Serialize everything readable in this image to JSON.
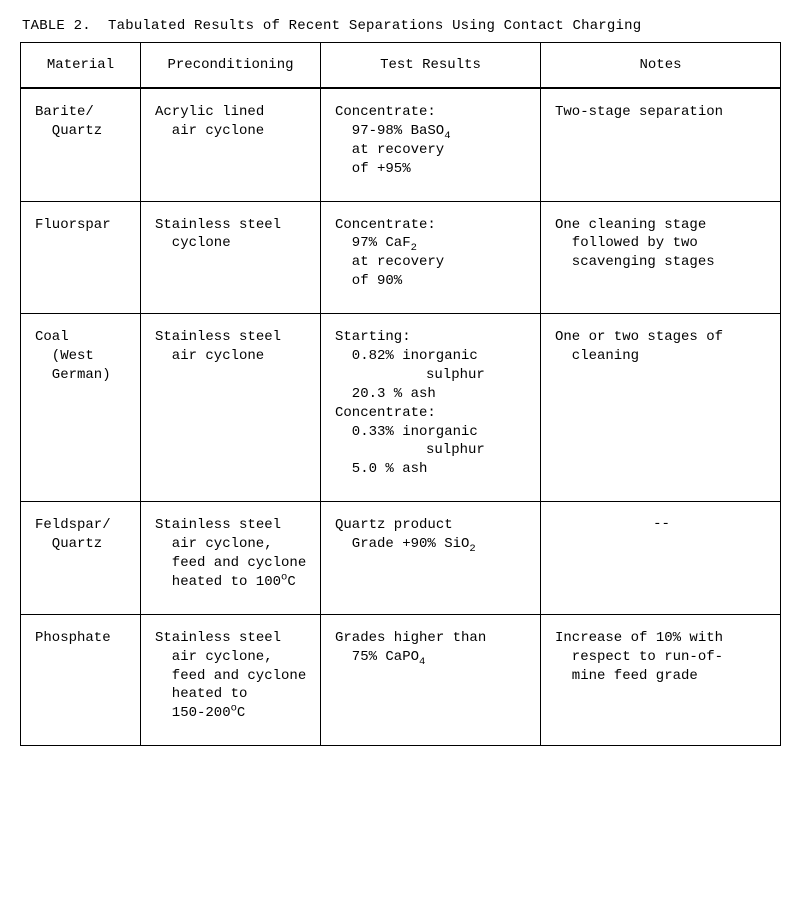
{
  "caption_prefix": "TABLE 2.",
  "caption_text": "Tabulated Results of Recent Separations Using Contact Charging",
  "columns": [
    "Material",
    "Preconditioning",
    "Test Results",
    "Notes"
  ],
  "rows": [
    {
      "material": [
        "Barite/",
        "Quartz"
      ],
      "precond": [
        "Acrylic lined",
        "air cyclone"
      ],
      "results": [
        "Concentrate:",
        "97-98% BaSO",
        "at recovery",
        "of +95%"
      ],
      "results_sub": "4",
      "notes": [
        "Two-stage separation"
      ]
    },
    {
      "material": [
        "Fluorspar"
      ],
      "precond": [
        "Stainless steel",
        "cyclone"
      ],
      "results": [
        "Concentrate:",
        "97% CaF",
        "at recovery",
        "of 90%"
      ],
      "results_sub": "2",
      "notes": [
        "One cleaning stage",
        "followed by two",
        "scavenging stages"
      ]
    },
    {
      "material": [
        "Coal",
        "(West",
        "German)"
      ],
      "precond": [
        "Stainless steel",
        "air cyclone"
      ],
      "results_coal": {
        "l1": "Starting:",
        "l2": "0.82% inorganic",
        "l3": "sulphur",
        "l4": "20.3 % ash",
        "l5": "Concentrate:",
        "l6": "0.33% inorganic",
        "l7": "sulphur",
        "l8": "5.0 % ash"
      },
      "notes": [
        "One or two stages of",
        "cleaning"
      ]
    },
    {
      "material": [
        "Feldspar/",
        "Quartz"
      ],
      "precond": [
        "Stainless steel",
        "air cyclone,",
        "feed and cyclone",
        "heated to 100"
      ],
      "precond_sup": "o",
      "precond_tail": "C",
      "results": [
        "Quartz product",
        "Grade +90% SiO"
      ],
      "results_sub": "2",
      "notes_dash": "--"
    },
    {
      "material": [
        "Phosphate"
      ],
      "precond": [
        "Stainless steel",
        "air cyclone,",
        "feed and cyclone",
        "heated to",
        "150-200"
      ],
      "precond_sup": "o",
      "precond_tail": "C",
      "results": [
        "Grades higher than",
        "75% CaPO"
      ],
      "results_sub": "4",
      "notes": [
        "Increase of 10% with",
        "respect to run-of-",
        "mine feed grade"
      ]
    }
  ]
}
